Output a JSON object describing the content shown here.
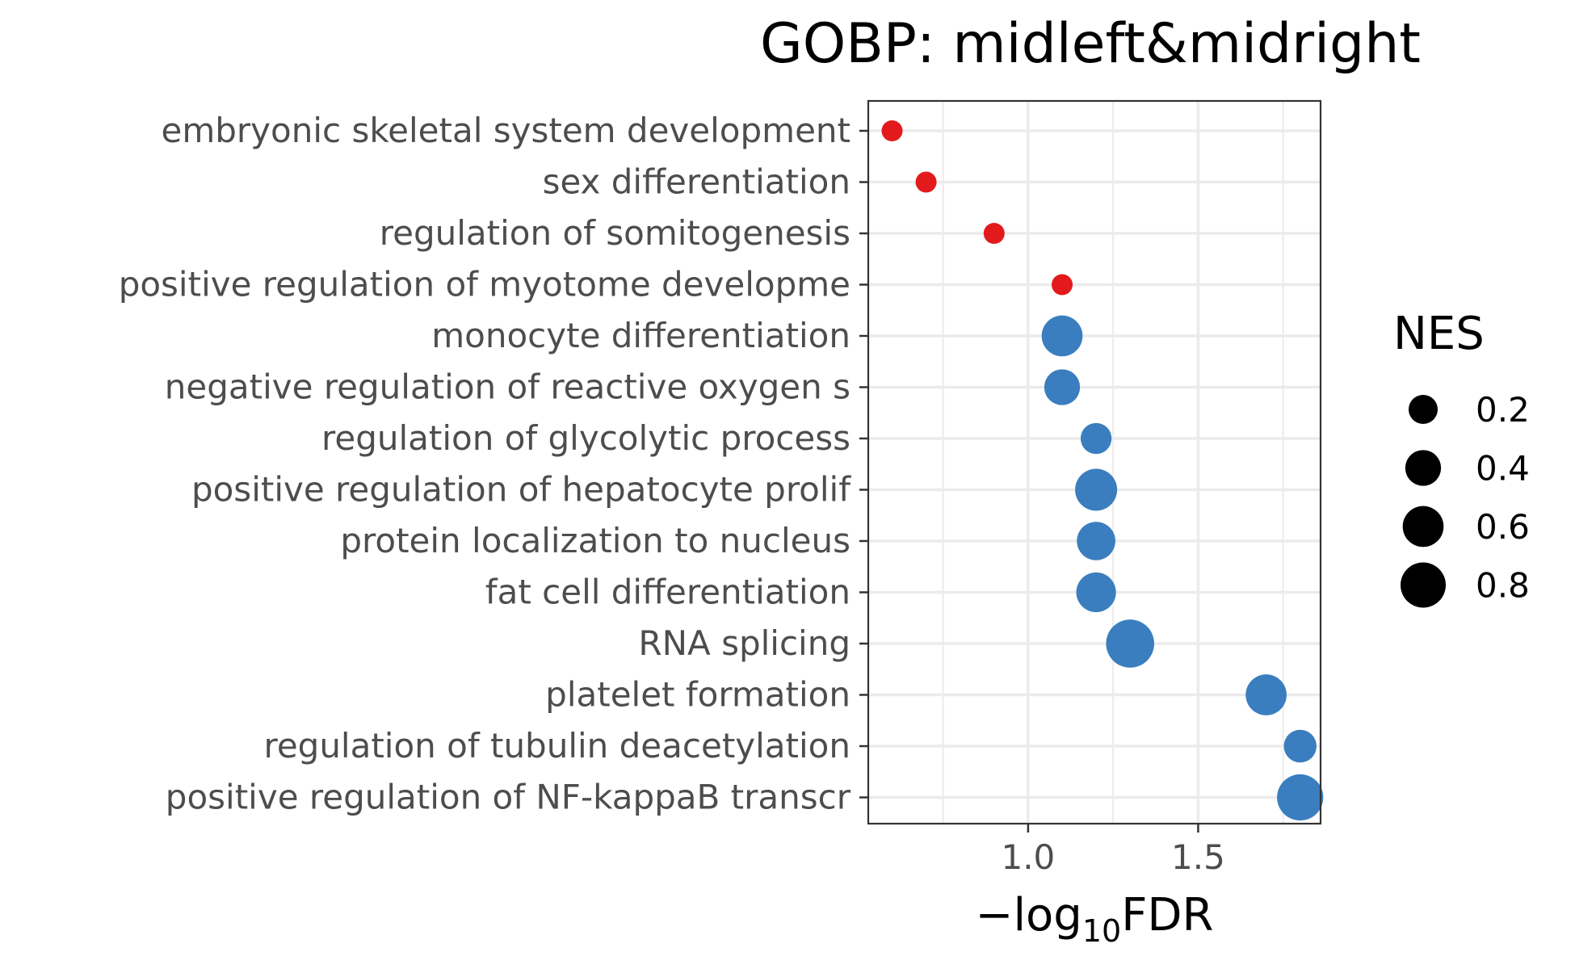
{
  "chart_data": {
    "type": "scatter",
    "title": "GOBP: midleft&midright",
    "xlabel_prefix": "−log",
    "xlabel_sub": "10",
    "xlabel_suffix": "FDR",
    "xlim": [
      0.53,
      1.86
    ],
    "xticks": [
      1.0,
      1.5
    ],
    "xtick_labels": [
      "1.0",
      "1.5"
    ],
    "colors": {
      "up": "#3a7ebf",
      "down": "#e31a1c"
    },
    "legend": {
      "title": "NES",
      "values": [
        0.2,
        0.4,
        0.6,
        0.8
      ],
      "labels": [
        "0.2",
        "0.4",
        "0.6",
        "0.8"
      ],
      "color": "#000000"
    },
    "points": [
      {
        "term": "embryonic skeletal system development",
        "x": 0.6,
        "nes": 0.05,
        "color": "down"
      },
      {
        "term": "sex differentiation",
        "x": 0.7,
        "nes": 0.05,
        "color": "down"
      },
      {
        "term": "regulation of somitogenesis",
        "x": 0.9,
        "nes": 0.05,
        "color": "down"
      },
      {
        "term": "positive regulation of myotome developme",
        "x": 1.1,
        "nes": 0.05,
        "color": "down"
      },
      {
        "term": "monocyte differentiation",
        "x": 1.1,
        "nes": 0.6,
        "color": "up"
      },
      {
        "term": "negative regulation of reactive oxygen s",
        "x": 1.1,
        "nes": 0.4,
        "color": "up"
      },
      {
        "term": "regulation of glycolytic process",
        "x": 1.2,
        "nes": 0.25,
        "color": "up"
      },
      {
        "term": "positive regulation of hepatocyte prolif",
        "x": 1.2,
        "nes": 0.65,
        "color": "up"
      },
      {
        "term": "protein localization to nucleus",
        "x": 1.2,
        "nes": 0.5,
        "color": "up"
      },
      {
        "term": "fat cell differentiation",
        "x": 1.2,
        "nes": 0.55,
        "color": "up"
      },
      {
        "term": "RNA splicing",
        "x": 1.3,
        "nes": 0.95,
        "color": "up"
      },
      {
        "term": "platelet formation",
        "x": 1.7,
        "nes": 0.6,
        "color": "up"
      },
      {
        "term": "regulation of tubulin deacetylation",
        "x": 1.8,
        "nes": 0.3,
        "color": "up"
      },
      {
        "term": "positive regulation of NF-kappaB transcr",
        "x": 1.8,
        "nes": 0.85,
        "color": "up"
      }
    ]
  }
}
